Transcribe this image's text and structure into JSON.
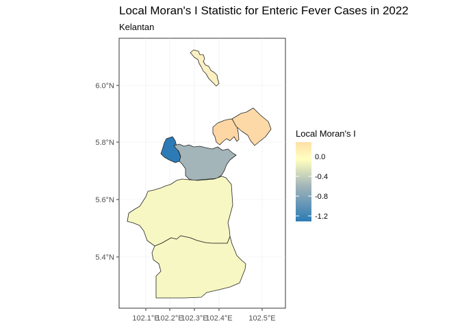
{
  "title": "Local Moran's I Statistic for Enteric Fever Cases in 2022",
  "subtitle": "Kelantan",
  "map": {
    "y_axis_ticks": [
      "6.0°N",
      "5.8°N",
      "5.6°N",
      "5.4°N"
    ],
    "x_axis_ticks": [
      "102.1°E",
      "102.2°E",
      "102.3°E",
      "102.4°E",
      "102.5°E"
    ],
    "grid": true,
    "regions": [
      {
        "id": "north-islet",
        "value": 0.05,
        "color": "#fbf0c2"
      },
      {
        "id": "northeast-east",
        "value": 0.2,
        "color": "#fdd9a8"
      },
      {
        "id": "northeast-west",
        "value": 0.2,
        "color": "#fdd6a3"
      },
      {
        "id": "west-small",
        "value": -1.25,
        "color": "#2c7bb6"
      },
      {
        "id": "central-gray",
        "value": -0.6,
        "color": "#a3b5b8"
      },
      {
        "id": "south-large",
        "value": -0.15,
        "color": "#f6f7c2"
      },
      {
        "id": "south-bottom",
        "value": -0.15,
        "color": "#f6f7c2"
      }
    ]
  },
  "legend": {
    "title": "Local Moran's I",
    "labels": [
      "0.0",
      "-0.4",
      "-0.8",
      "-1.2"
    ],
    "colors": [
      "#fee0a7",
      "#ffffbf",
      "#a3b5b8",
      "#2c7bb6"
    ],
    "placement": "right"
  }
}
